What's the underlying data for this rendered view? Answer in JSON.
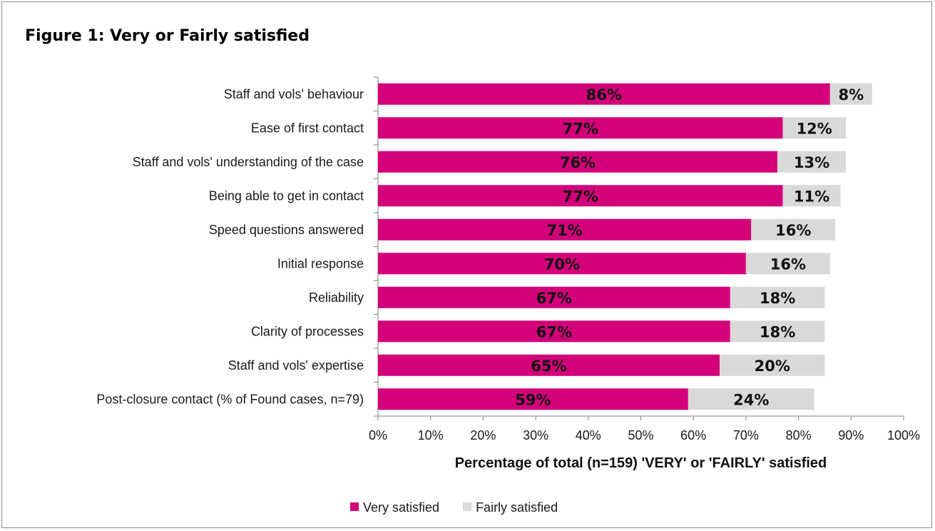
{
  "chart_data": {
    "type": "bar",
    "orientation": "horizontal",
    "stacked": true,
    "title": "Figure 1: Very or Fairly satisfied",
    "xlabel": "Percentage of total (n=159)  'VERY'  or 'FAIRLY'  satisfied",
    "xlim": [
      0,
      100
    ],
    "x_ticks": [
      "0%",
      "10%",
      "20%",
      "30%",
      "40%",
      "50%",
      "60%",
      "70%",
      "80%",
      "90%",
      "100%"
    ],
    "categories": [
      "Staff and vols' behaviour",
      "Ease of first contact",
      "Staff and vols' understanding of the case",
      "Being able to get in contact",
      "Speed questions answered",
      "Initial response",
      "Reliability",
      "Clarity of processes",
      "Staff and vols' expertise",
      "Post-closure contact (% of Found cases, n=79)"
    ],
    "series": [
      {
        "name": "Very satisfied",
        "color": "#d3007a",
        "values": [
          86,
          77,
          76,
          77,
          71,
          70,
          67,
          67,
          65,
          59
        ],
        "labels": [
          "86%",
          "77%",
          "76%",
          "77%",
          "71%",
          "70%",
          "67%",
          "67%",
          "65%",
          "59%"
        ]
      },
      {
        "name": "Fairly satisfied",
        "color": "#d9d9d9",
        "values": [
          8,
          12,
          13,
          11,
          16,
          16,
          18,
          18,
          20,
          24
        ],
        "labels": [
          "8%",
          "12%",
          "13%",
          "11%",
          "16%",
          "16%",
          "18%",
          "18%",
          "20%",
          "24%"
        ]
      }
    ],
    "legend_position": "bottom",
    "grid": false
  }
}
